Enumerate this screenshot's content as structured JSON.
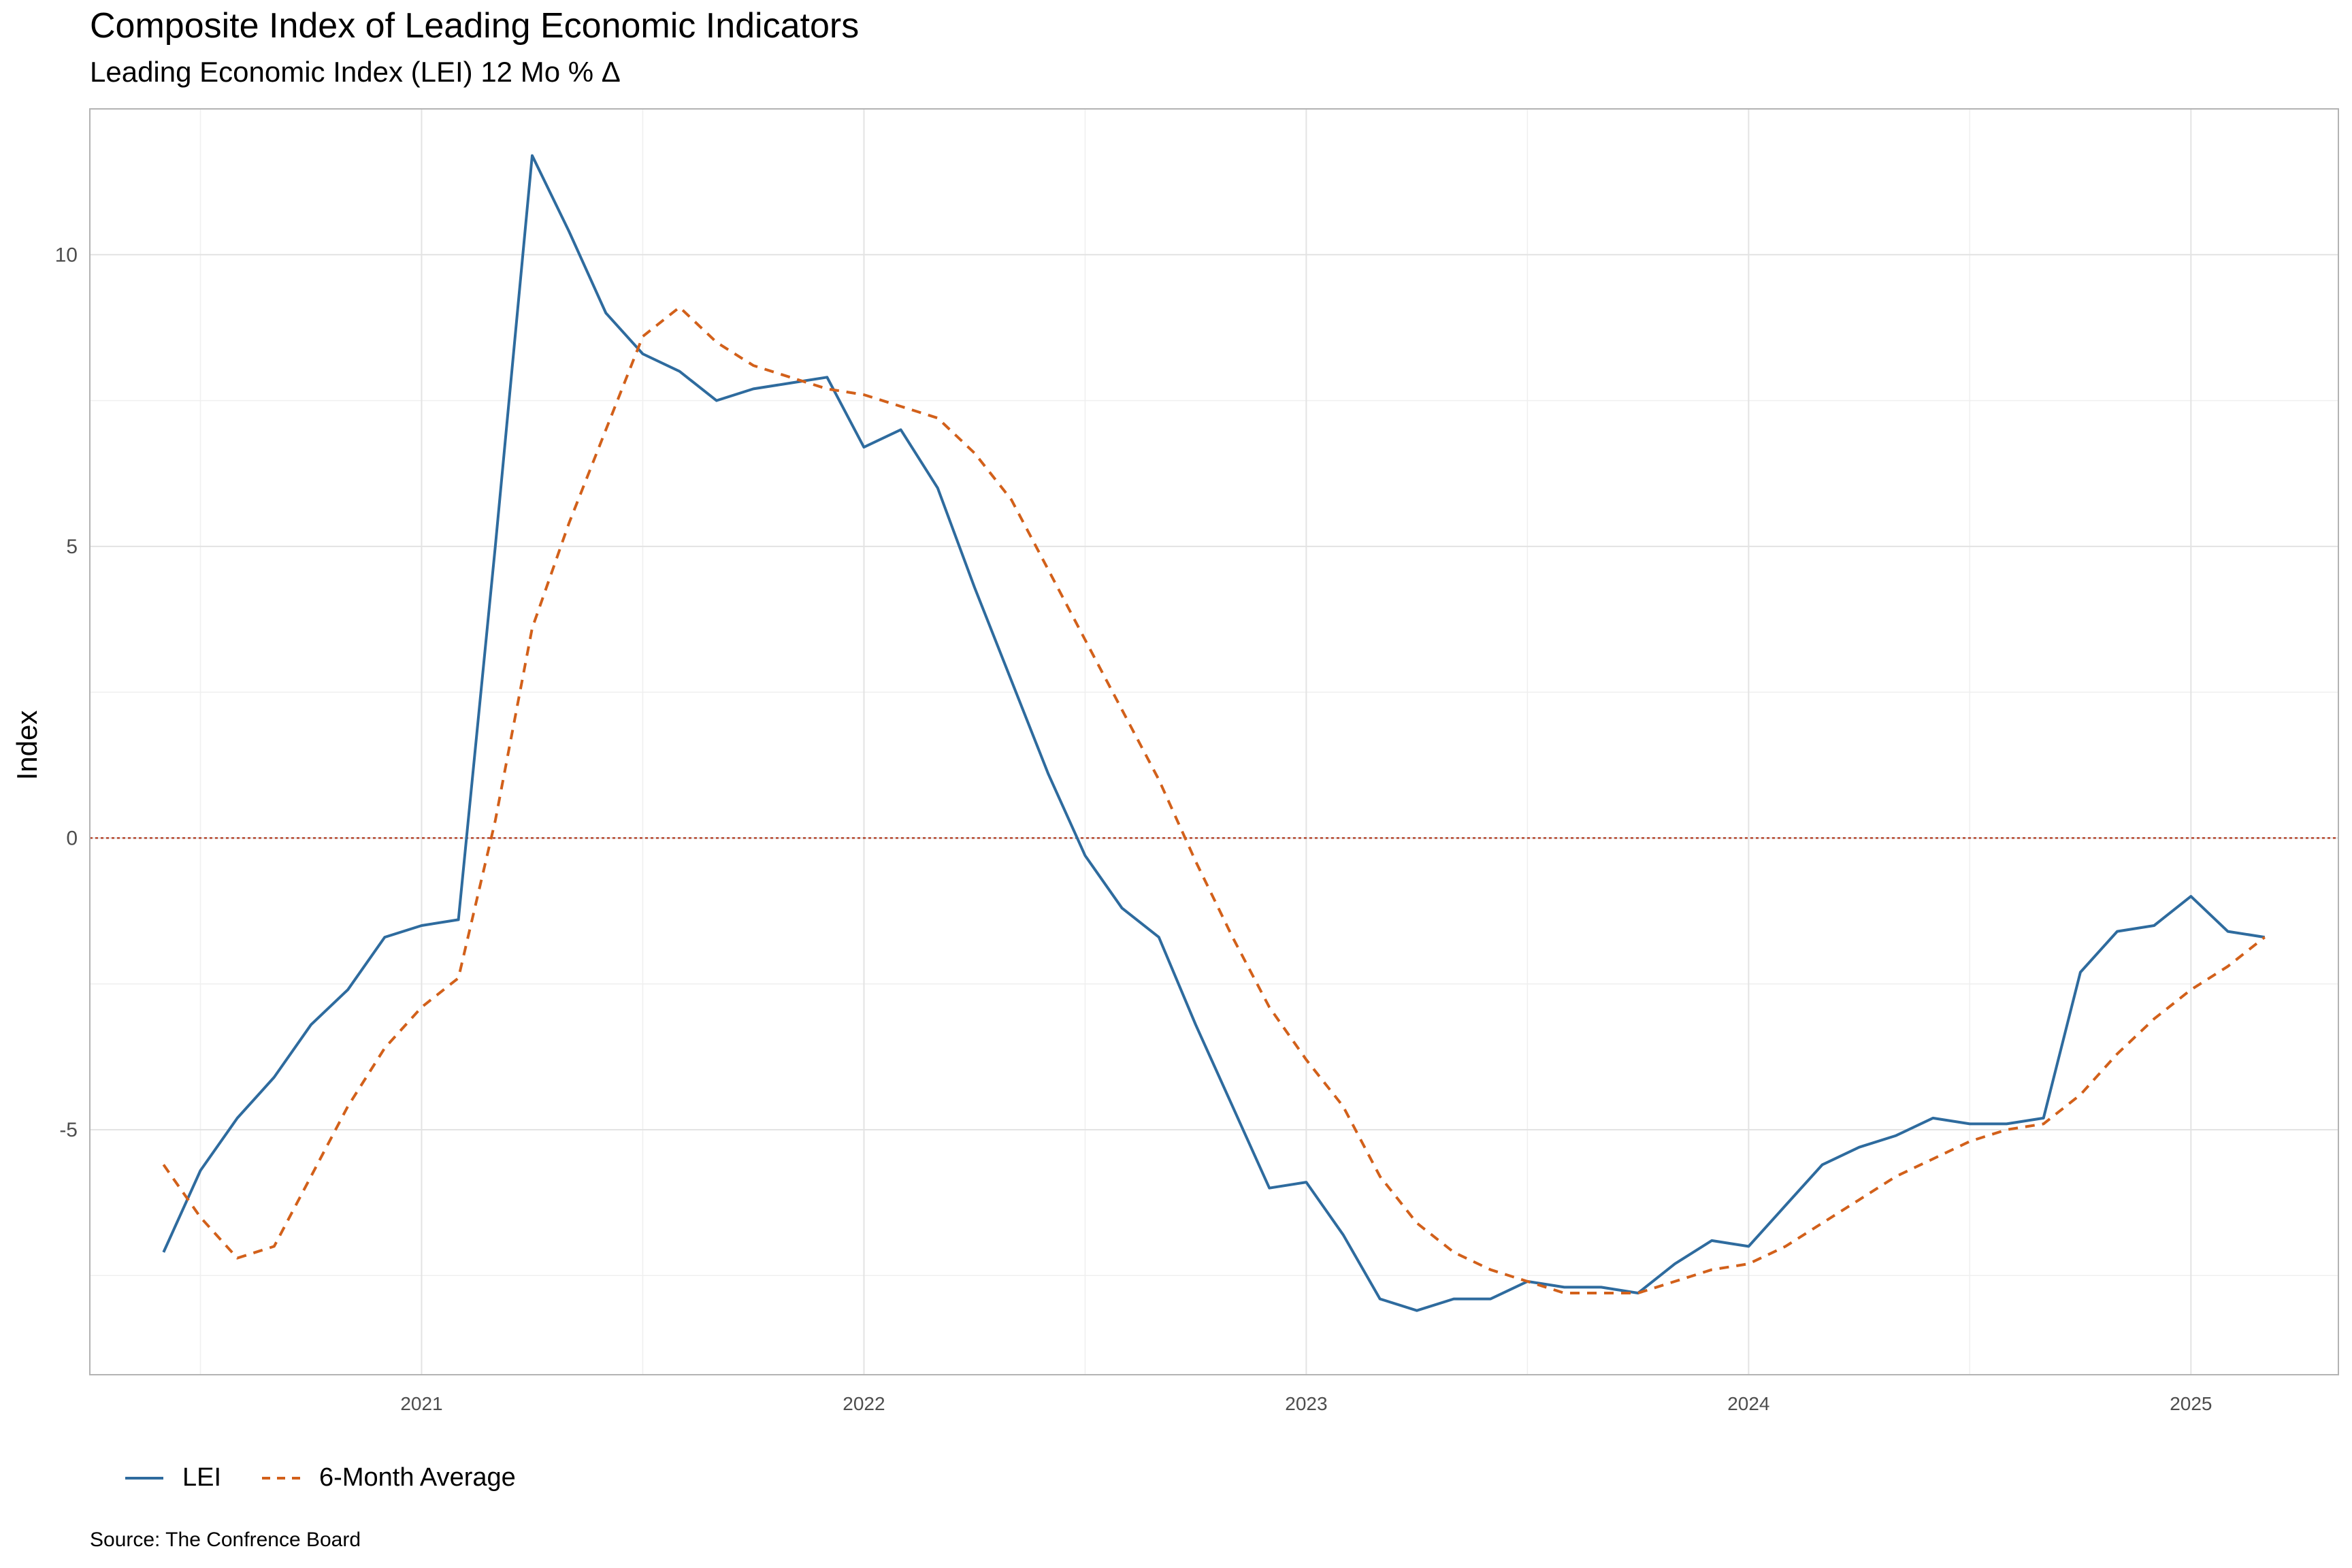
{
  "header": {
    "title": "Composite Index of Leading Economic Indicators",
    "subtitle": "Leading Economic Index (LEI) 12 Mo % Δ"
  },
  "footer": {
    "source": "Source: The Confrence Board"
  },
  "chart_data": {
    "type": "line",
    "title": "Composite Index of Leading Economic Indicators",
    "subtitle": "Leading Economic Index (LEI) 12 Mo % Δ",
    "xlabel": "",
    "ylabel": "Index",
    "x_ticks": [
      "2021",
      "2022",
      "2023",
      "2024",
      "2025"
    ],
    "y_ticks": [
      -5,
      0,
      5,
      10
    ],
    "ylim": [
      -9.2,
      12.5
    ],
    "xlim": [
      "2020-04",
      "2025-05"
    ],
    "grid": true,
    "legend_position": "bottom-left",
    "reference_line": {
      "y": 0,
      "style": "dotted",
      "color": "#b5472e"
    },
    "colors": {
      "LEI": "#2e6b9e",
      "6-Month Average": "#d2601a"
    },
    "x": [
      "2020-06",
      "2020-07",
      "2020-08",
      "2020-09",
      "2020-10",
      "2020-11",
      "2020-12",
      "2021-01",
      "2021-02",
      "2021-03",
      "2021-04",
      "2021-05",
      "2021-06",
      "2021-07",
      "2021-08",
      "2021-09",
      "2021-10",
      "2021-11",
      "2021-12",
      "2022-01",
      "2022-02",
      "2022-03",
      "2022-04",
      "2022-05",
      "2022-06",
      "2022-07",
      "2022-08",
      "2022-09",
      "2022-10",
      "2022-11",
      "2022-12",
      "2023-01",
      "2023-02",
      "2023-03",
      "2023-04",
      "2023-05",
      "2023-06",
      "2023-07",
      "2023-08",
      "2023-09",
      "2023-10",
      "2023-11",
      "2023-12",
      "2024-01",
      "2024-02",
      "2024-03",
      "2024-04",
      "2024-05",
      "2024-06",
      "2024-07",
      "2024-08",
      "2024-09",
      "2024-10",
      "2024-11",
      "2024-12",
      "2025-01",
      "2025-02",
      "2025-03"
    ],
    "series": [
      {
        "name": "LEI",
        "style": "solid",
        "values": [
          -7.1,
          -5.7,
          -4.8,
          -4.1,
          -3.2,
          -2.6,
          -1.7,
          -1.5,
          -1.4,
          5.0,
          11.7,
          10.4,
          9.0,
          8.3,
          8.0,
          7.5,
          7.7,
          7.8,
          7.9,
          6.7,
          7.0,
          6.0,
          4.3,
          2.7,
          1.1,
          -0.3,
          -1.2,
          -1.7,
          -3.2,
          -4.6,
          -6.0,
          -5.9,
          -6.8,
          -7.9,
          -8.1,
          -7.9,
          -7.9,
          -7.6,
          -7.7,
          -7.7,
          -7.8,
          -7.3,
          -6.9,
          -7.0,
          -6.3,
          -5.6,
          -5.3,
          -5.1,
          -4.8,
          -4.9,
          -4.9,
          -4.8,
          -2.3,
          -1.6,
          -1.5,
          -1.0,
          -1.6,
          -1.7
        ]
      },
      {
        "name": "6-Month Average",
        "style": "dashed",
        "values": [
          -5.6,
          -6.5,
          -7.2,
          -7.0,
          -5.8,
          -4.6,
          -3.6,
          -2.9,
          -2.4,
          0.3,
          3.6,
          5.4,
          7.0,
          8.6,
          9.1,
          8.5,
          8.1,
          7.9,
          7.7,
          7.6,
          7.4,
          7.2,
          6.6,
          5.8,
          4.6,
          3.4,
          2.2,
          1.0,
          -0.4,
          -1.7,
          -2.9,
          -3.8,
          -4.6,
          -5.8,
          -6.6,
          -7.1,
          -7.4,
          -7.6,
          -7.8,
          -7.8,
          -7.8,
          -7.6,
          -7.4,
          -7.3,
          -7.0,
          -6.6,
          -6.2,
          -5.8,
          -5.5,
          -5.2,
          -5.0,
          -4.9,
          -4.4,
          -3.7,
          -3.1,
          -2.6,
          -2.2,
          -1.7
        ]
      }
    ]
  }
}
